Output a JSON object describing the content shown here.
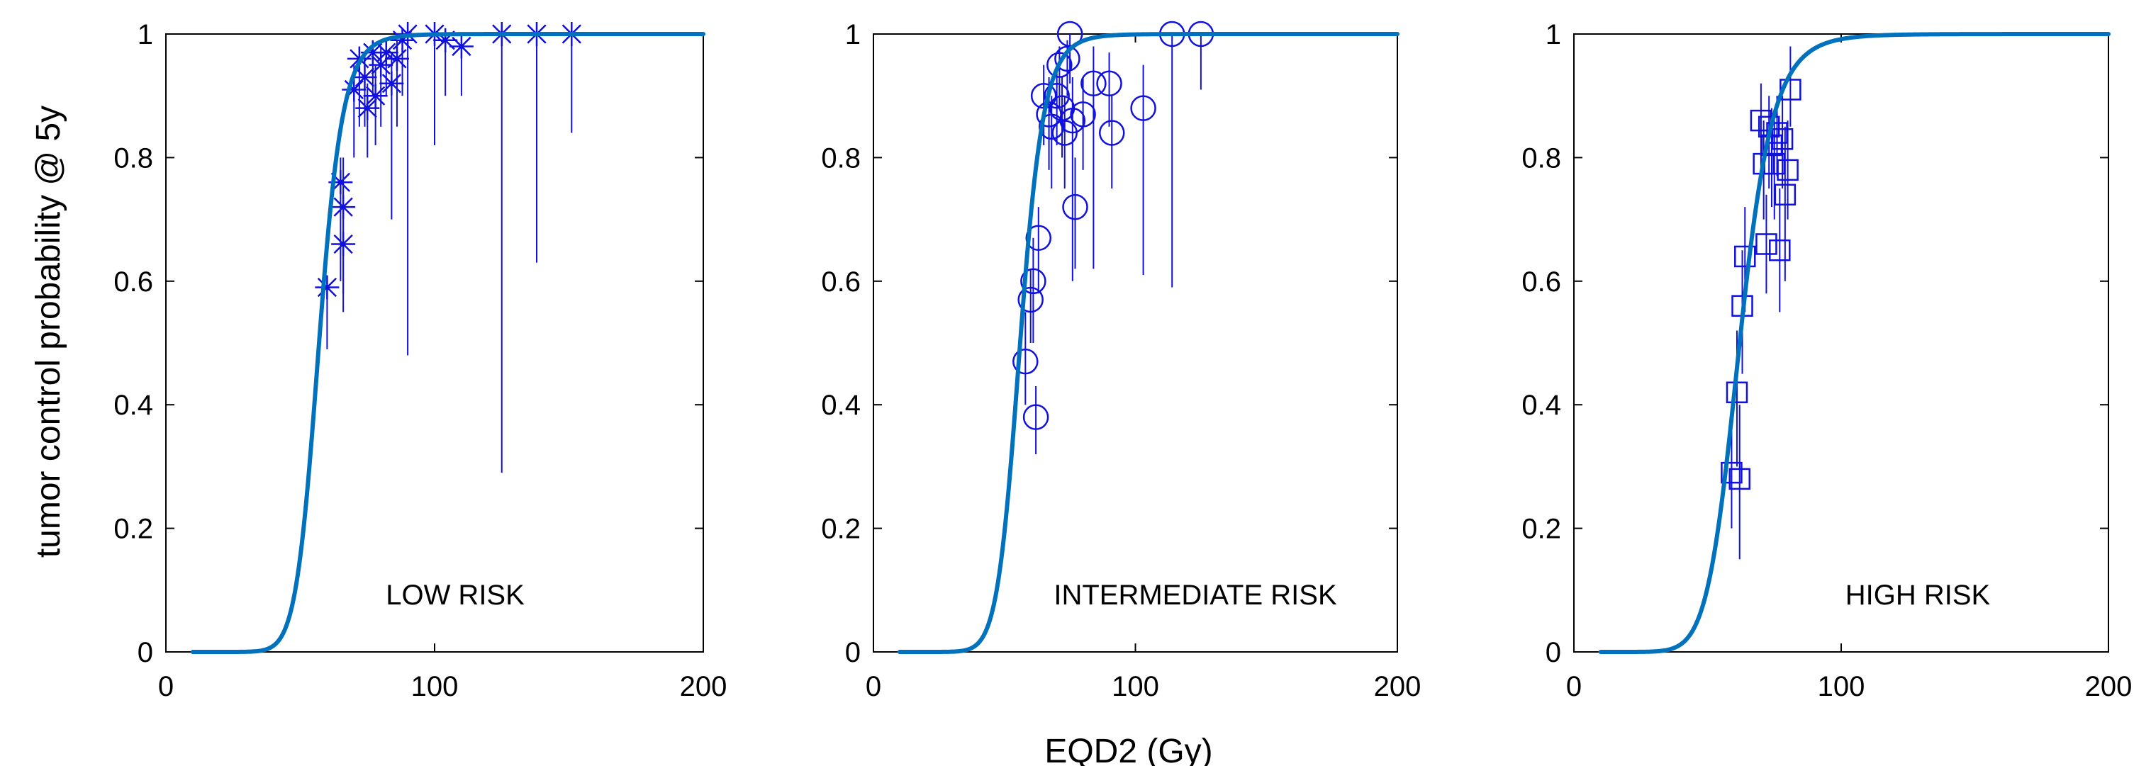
{
  "figure": {
    "ylabel": "tumor control probability @ 5y",
    "xlabel": "EQD2 (Gy)"
  },
  "colors": {
    "curve": "#0072bd",
    "markers": "#1010e0",
    "axes": "#000000"
  },
  "chart_data": [
    {
      "type": "scatter",
      "panel_label": "LOW RISK",
      "marker": "asterisk",
      "xlim": [
        0,
        200
      ],
      "ylim": [
        0,
        1
      ],
      "xticks": [
        "0",
        "100",
        "200"
      ],
      "yticks": [
        "0",
        "0.2",
        "0.4",
        "0.6",
        "0.8",
        "1"
      ],
      "fit_curve": {
        "name": "TCP model",
        "d50": 57,
        "k": 6.5,
        "x_start": 10,
        "x_end": 200
      },
      "points": [
        {
          "x": 60,
          "y": 0.59,
          "lo": 0.49,
          "hi": 0.6
        },
        {
          "x": 65,
          "y": 0.76,
          "lo": 0.6,
          "hi": 0.8
        },
        {
          "x": 66,
          "y": 0.72,
          "lo": 0.58,
          "hi": 0.8
        },
        {
          "x": 66,
          "y": 0.66,
          "lo": 0.55,
          "hi": 0.75
        },
        {
          "x": 70,
          "y": 0.91,
          "lo": 0.8,
          "hi": 0.95
        },
        {
          "x": 72,
          "y": 0.96,
          "lo": 0.85,
          "hi": 0.98
        },
        {
          "x": 74,
          "y": 0.93,
          "lo": 0.85,
          "hi": 0.97
        },
        {
          "x": 75,
          "y": 0.88,
          "lo": 0.8,
          "hi": 0.92
        },
        {
          "x": 77,
          "y": 0.97,
          "lo": 0.9,
          "hi": 0.99
        },
        {
          "x": 78,
          "y": 0.9,
          "lo": 0.82,
          "hi": 0.95
        },
        {
          "x": 80,
          "y": 0.95,
          "lo": 0.85,
          "hi": 0.98
        },
        {
          "x": 82,
          "y": 0.97,
          "lo": 0.9,
          "hi": 0.99
        },
        {
          "x": 84,
          "y": 0.92,
          "lo": 0.7,
          "hi": 0.97
        },
        {
          "x": 86,
          "y": 0.96,
          "lo": 0.85,
          "hi": 0.99
        },
        {
          "x": 88,
          "y": 0.99,
          "lo": 0.9,
          "hi": 1.0
        },
        {
          "x": 90,
          "y": 1.0,
          "lo": 0.48,
          "hi": 1.0
        },
        {
          "x": 100,
          "y": 1.0,
          "lo": 0.82,
          "hi": 1.0
        },
        {
          "x": 104,
          "y": 0.99,
          "lo": 0.9,
          "hi": 1.0
        },
        {
          "x": 110,
          "y": 0.98,
          "lo": 0.9,
          "hi": 1.0
        },
        {
          "x": 125,
          "y": 1.0,
          "lo": 0.29,
          "hi": 1.0
        },
        {
          "x": 138,
          "y": 1.0,
          "lo": 0.63,
          "hi": 1.0
        },
        {
          "x": 151,
          "y": 1.0,
          "lo": 0.84,
          "hi": 1.0
        }
      ]
    },
    {
      "type": "scatter",
      "panel_label": "INTERMEDIATE RISK",
      "marker": "circle",
      "xlim": [
        0,
        200
      ],
      "ylim": [
        0,
        1
      ],
      "xticks": [
        "0",
        "100",
        "200"
      ],
      "yticks": [
        "0",
        "0.2",
        "0.4",
        "0.6",
        "0.8",
        "1"
      ],
      "fit_curve": {
        "name": "TCP model",
        "d50": 56,
        "k": 6.3,
        "x_start": 10,
        "x_end": 200
      },
      "points": [
        {
          "x": 58,
          "y": 0.47,
          "lo": 0.4,
          "hi": 0.55
        },
        {
          "x": 60,
          "y": 0.57,
          "lo": 0.5,
          "hi": 0.62
        },
        {
          "x": 61,
          "y": 0.6,
          "lo": 0.5,
          "hi": 0.67
        },
        {
          "x": 62,
          "y": 0.38,
          "lo": 0.32,
          "hi": 0.43
        },
        {
          "x": 63,
          "y": 0.67,
          "lo": 0.58,
          "hi": 0.72
        },
        {
          "x": 65,
          "y": 0.9,
          "lo": 0.82,
          "hi": 0.95
        },
        {
          "x": 67,
          "y": 0.87,
          "lo": 0.78,
          "hi": 0.93
        },
        {
          "x": 68,
          "y": 0.85,
          "lo": 0.75,
          "hi": 0.9
        },
        {
          "x": 70,
          "y": 0.9,
          "lo": 0.82,
          "hi": 0.95
        },
        {
          "x": 71,
          "y": 0.95,
          "lo": 0.88,
          "hi": 0.98
        },
        {
          "x": 72,
          "y": 0.88,
          "lo": 0.8,
          "hi": 0.93
        },
        {
          "x": 73,
          "y": 0.84,
          "lo": 0.75,
          "hi": 0.9
        },
        {
          "x": 74,
          "y": 0.96,
          "lo": 0.9,
          "hi": 0.99
        },
        {
          "x": 75,
          "y": 1.0,
          "lo": 0.92,
          "hi": 1.0
        },
        {
          "x": 76,
          "y": 0.86,
          "lo": 0.6,
          "hi": 0.93
        },
        {
          "x": 77,
          "y": 0.72,
          "lo": 0.62,
          "hi": 0.8
        },
        {
          "x": 80,
          "y": 0.87,
          "lo": 0.78,
          "hi": 0.93
        },
        {
          "x": 84,
          "y": 0.92,
          "lo": 0.62,
          "hi": 0.98
        },
        {
          "x": 90,
          "y": 0.92,
          "lo": 0.85,
          "hi": 0.97
        },
        {
          "x": 91,
          "y": 0.84,
          "lo": 0.75,
          "hi": 0.9
        },
        {
          "x": 103,
          "y": 0.88,
          "lo": 0.61,
          "hi": 0.95
        },
        {
          "x": 114,
          "y": 1.0,
          "lo": 0.59,
          "hi": 1.0
        },
        {
          "x": 125,
          "y": 1.0,
          "lo": 0.91,
          "hi": 1.0
        }
      ]
    },
    {
      "type": "scatter",
      "panel_label": "HIGH RISK",
      "marker": "square",
      "xlim": [
        0,
        200
      ],
      "ylim": [
        0,
        1
      ],
      "xticks": [
        "0",
        "100",
        "200"
      ],
      "yticks": [
        "0",
        "0.2",
        "0.4",
        "0.6",
        "0.8",
        "1"
      ],
      "fit_curve": {
        "name": "TCP model",
        "d50": 62,
        "k": 5.0,
        "x_start": 10,
        "x_end": 200
      },
      "points": [
        {
          "x": 59,
          "y": 0.29,
          "lo": 0.2,
          "hi": 0.36
        },
        {
          "x": 61,
          "y": 0.42,
          "lo": 0.3,
          "hi": 0.52
        },
        {
          "x": 62,
          "y": 0.28,
          "lo": 0.15,
          "hi": 0.4
        },
        {
          "x": 63,
          "y": 0.56,
          "lo": 0.45,
          "hi": 0.65
        },
        {
          "x": 64,
          "y": 0.64,
          "lo": 0.55,
          "hi": 0.72
        },
        {
          "x": 70,
          "y": 0.86,
          "lo": 0.77,
          "hi": 0.92
        },
        {
          "x": 71,
          "y": 0.79,
          "lo": 0.7,
          "hi": 0.86
        },
        {
          "x": 72,
          "y": 0.66,
          "lo": 0.58,
          "hi": 0.74
        },
        {
          "x": 73,
          "y": 0.85,
          "lo": 0.75,
          "hi": 0.9
        },
        {
          "x": 74,
          "y": 0.82,
          "lo": 0.72,
          "hi": 0.88
        },
        {
          "x": 75,
          "y": 0.79,
          "lo": 0.7,
          "hi": 0.86
        },
        {
          "x": 76,
          "y": 0.84,
          "lo": 0.77,
          "hi": 0.9
        },
        {
          "x": 77,
          "y": 0.65,
          "lo": 0.55,
          "hi": 0.75
        },
        {
          "x": 78,
          "y": 0.83,
          "lo": 0.75,
          "hi": 0.9
        },
        {
          "x": 79,
          "y": 0.74,
          "lo": 0.6,
          "hi": 0.85
        },
        {
          "x": 80,
          "y": 0.78,
          "lo": 0.7,
          "hi": 0.86
        },
        {
          "x": 81,
          "y": 0.91,
          "lo": 0.85,
          "hi": 0.98
        }
      ]
    }
  ]
}
